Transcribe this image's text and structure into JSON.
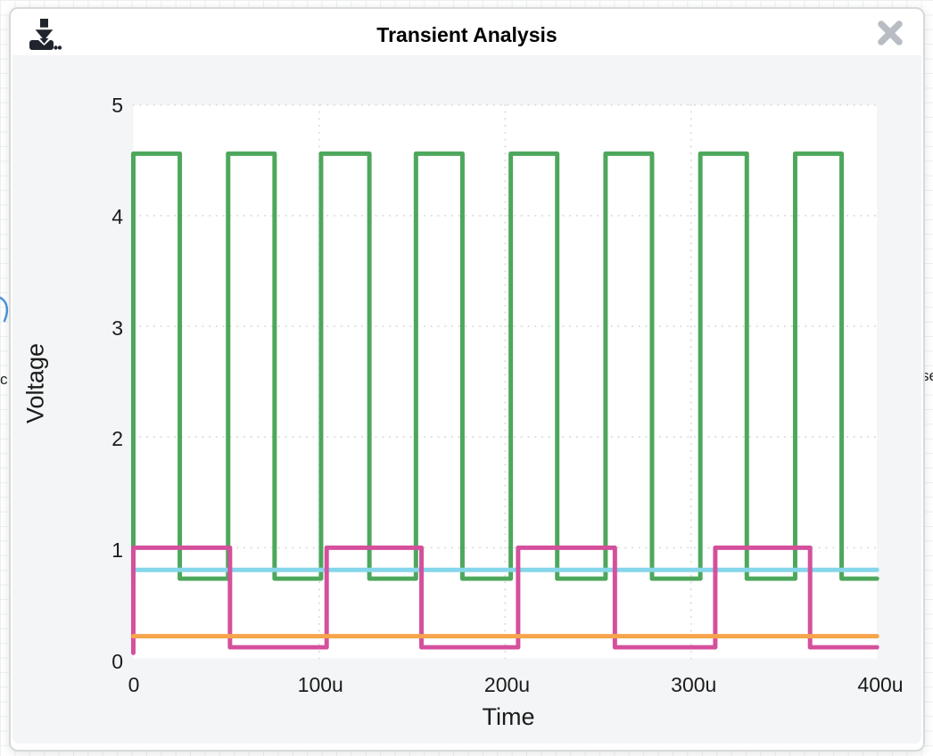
{
  "background": {
    "partial_label_left": "c",
    "partial_label_right": "se"
  },
  "dialog": {
    "title": "Transient Analysis"
  },
  "chart_data": {
    "type": "line",
    "title": "Transient Analysis",
    "xlabel": "Time",
    "ylabel": "Voltage",
    "xlim": [
      0,
      400
    ],
    "ylim": [
      0,
      5
    ],
    "x_unit_suffix": "u",
    "grid": "dotted",
    "legend": "none",
    "plot_bg": "#ffffff",
    "panel_bg": "#f4f5f6",
    "xticks": [
      {
        "x": 0,
        "label": "0"
      },
      {
        "x": 100,
        "label": "100u"
      },
      {
        "x": 200,
        "label": "200u"
      },
      {
        "x": 300,
        "label": "300u"
      },
      {
        "x": 400,
        "label": "400u"
      }
    ],
    "yticks": [
      {
        "y": 0,
        "label": "0"
      },
      {
        "y": 1,
        "label": "1"
      },
      {
        "y": 2,
        "label": "2"
      },
      {
        "y": 3,
        "label": "3"
      },
      {
        "y": 4,
        "label": "4"
      },
      {
        "y": 5,
        "label": "5"
      }
    ],
    "series": [
      {
        "name": "green-square-wave",
        "color": "#4da75c",
        "points": [
          [
            0,
            0.72
          ],
          [
            0,
            4.56
          ],
          [
            25,
            4.56
          ],
          [
            25,
            0.72
          ],
          [
            51,
            0.72
          ],
          [
            51,
            4.56
          ],
          [
            76,
            4.56
          ],
          [
            76,
            0.72
          ],
          [
            101,
            0.72
          ],
          [
            101,
            4.56
          ],
          [
            127,
            4.56
          ],
          [
            127,
            0.72
          ],
          [
            152,
            0.72
          ],
          [
            152,
            4.56
          ],
          [
            177,
            4.56
          ],
          [
            177,
            0.72
          ],
          [
            203,
            0.72
          ],
          [
            203,
            4.56
          ],
          [
            228,
            4.56
          ],
          [
            228,
            0.72
          ],
          [
            254,
            0.72
          ],
          [
            254,
            4.56
          ],
          [
            279,
            4.56
          ],
          [
            279,
            0.72
          ],
          [
            305,
            0.72
          ],
          [
            305,
            4.56
          ],
          [
            330,
            4.56
          ],
          [
            330,
            0.72
          ],
          [
            356,
            0.72
          ],
          [
            356,
            4.56
          ],
          [
            381,
            4.56
          ],
          [
            381,
            0.72
          ],
          [
            400,
            0.72
          ]
        ]
      },
      {
        "name": "cyan-constant",
        "color": "#85d6ea",
        "points": [
          [
            0,
            0.8
          ],
          [
            400,
            0.8
          ]
        ]
      },
      {
        "name": "pink-square-wave",
        "color": "#d5509c",
        "points": [
          [
            0,
            0.05
          ],
          [
            0,
            1
          ],
          [
            52,
            1
          ],
          [
            52,
            0.1
          ],
          [
            104,
            0.1
          ],
          [
            104,
            1
          ],
          [
            155,
            1
          ],
          [
            155,
            0.1
          ],
          [
            207,
            0.1
          ],
          [
            207,
            1
          ],
          [
            259,
            1
          ],
          [
            259,
            0.1
          ],
          [
            313,
            0.1
          ],
          [
            313,
            1
          ],
          [
            364,
            1
          ],
          [
            364,
            0.1
          ],
          [
            400,
            0.1
          ]
        ]
      },
      {
        "name": "orange-constant",
        "color": "#f5a54b",
        "points": [
          [
            0,
            0.2
          ],
          [
            400,
            0.2
          ]
        ]
      }
    ]
  }
}
